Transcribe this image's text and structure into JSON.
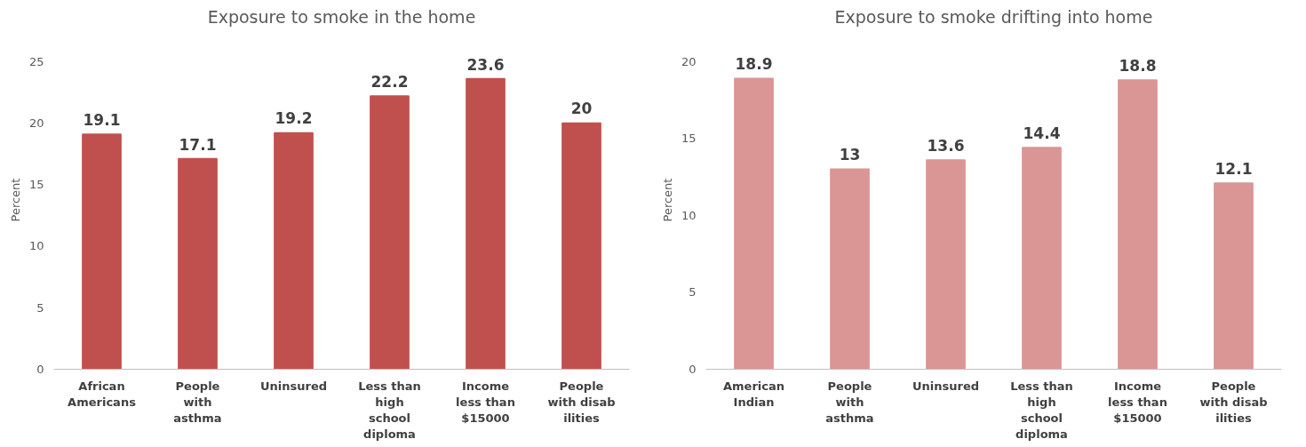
{
  "chart_data": [
    {
      "type": "bar",
      "title": "Exposure to smoke in the home",
      "ylabel": "Percent",
      "categories": [
        "African Americans",
        "People with asthma",
        "Uninsured",
        "Less than high school diploma",
        "Income less than $15000",
        "People with disabilities"
      ],
      "values": [
        19.1,
        17.1,
        19.2,
        22.2,
        23.6,
        20
      ],
      "color": "#c0504d",
      "ylim": [
        0,
        25
      ],
      "yticks": [
        0,
        5,
        10,
        15,
        20,
        25
      ],
      "data_labels": true,
      "grid": false
    },
    {
      "type": "bar",
      "title": "Exposure to smoke drifting into home",
      "ylabel": "Percent",
      "categories": [
        "American Indian",
        "People with asthma",
        "Uninsured",
        "Less than high school diploma",
        "Income less than $15000",
        "People with disabilities"
      ],
      "values": [
        18.9,
        13,
        13.6,
        14.4,
        18.8,
        12.1
      ],
      "color": "#d99694",
      "ylim": [
        0,
        20
      ],
      "yticks": [
        0,
        5,
        10,
        15,
        20
      ],
      "data_labels": true,
      "grid": false
    }
  ]
}
